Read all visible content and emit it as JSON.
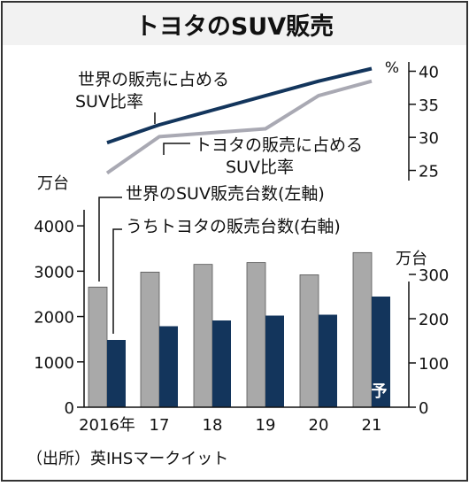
{
  "title": "トヨタのSUV販売",
  "source": "（出所）英IHSマークイット",
  "colors": {
    "world_line": "#13355c",
    "toyota_line": "#a9a9b3",
    "world_bar": "#a9a9a9",
    "toyota_bar": "#13355c",
    "frame": "#333333",
    "title_bg": "#f2f2f2"
  },
  "chart_data": [
    {
      "type": "line",
      "x": [
        "2016年",
        "17",
        "18",
        "19",
        "20",
        "21"
      ],
      "yaxis_unit": "%",
      "ylim": [
        24,
        41
      ],
      "yticks": [
        25,
        30,
        35,
        40
      ],
      "series": [
        {
          "name": "世界の販売に占めるSUV比率",
          "values": [
            29.2,
            31.9,
            34.1,
            36.3,
            38.5,
            40.4
          ]
        },
        {
          "name": "トヨタの販売に占めるSUV比率",
          "values": [
            24.6,
            30.1,
            30.7,
            31.3,
            36.3,
            38.5
          ]
        }
      ]
    },
    {
      "type": "bar",
      "categories": [
        "2016年",
        "17",
        "18",
        "19",
        "20",
        "21"
      ],
      "category_note": {
        "index": 5,
        "text": "予"
      },
      "left_axis": {
        "unit": "万台",
        "ylim": [
          0,
          4100
        ],
        "ticks": [
          0,
          1000,
          2000,
          3000,
          4000
        ]
      },
      "right_axis": {
        "unit": "万台",
        "ylim": [
          0,
          420
        ],
        "ticks": [
          0,
          100,
          200,
          300
        ]
      },
      "series": [
        {
          "name": "世界のSUV販売台数(左軸)",
          "axis": "left",
          "values": [
            2650,
            2980,
            3150,
            3190,
            2920,
            3410
          ]
        },
        {
          "name": "うちトヨタの販売台数(右軸)",
          "axis": "right",
          "values": [
            152,
            183,
            196,
            207,
            209,
            250
          ]
        }
      ]
    }
  ]
}
